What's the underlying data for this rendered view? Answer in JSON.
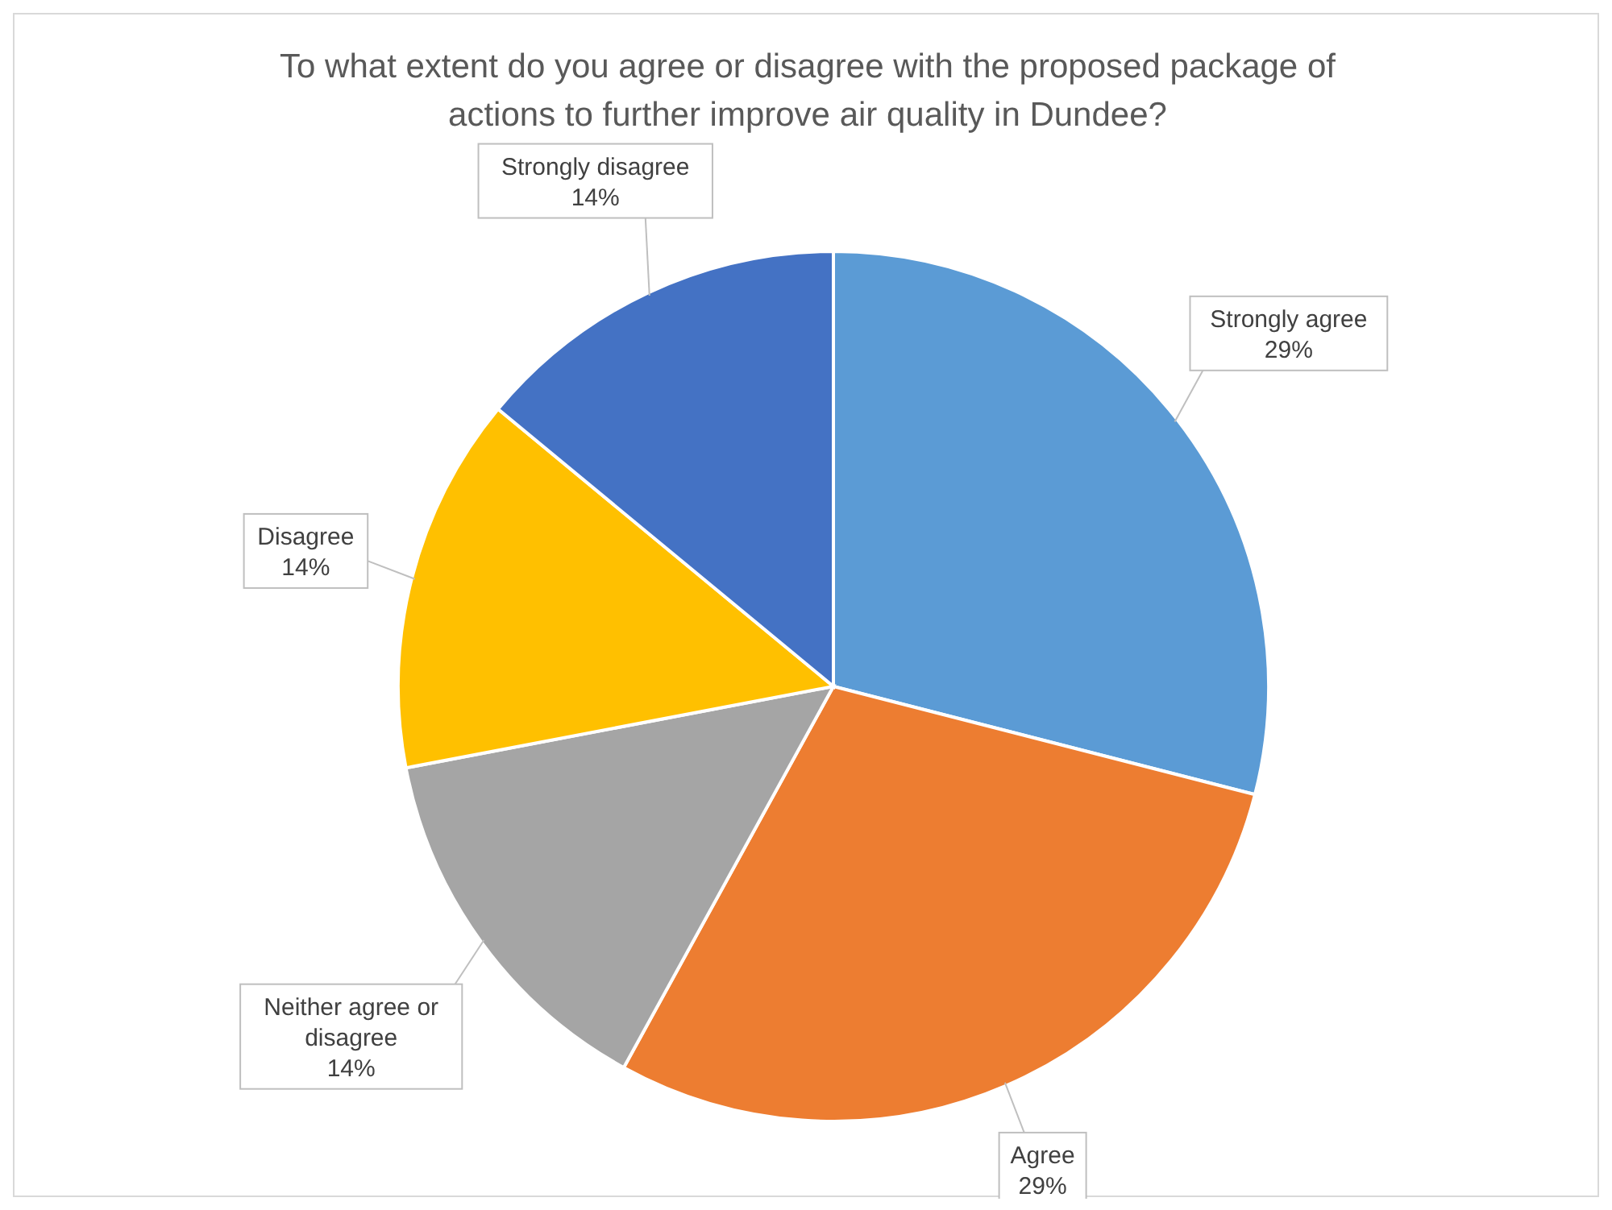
{
  "chart_data": {
    "type": "pie",
    "title": "To what extent do you agree or disagree with the proposed package of actions to further improve air quality in Dundee?",
    "categories": [
      "Strongly agree",
      "Agree",
      "Neither agree or disagree",
      "Disagree",
      "Strongly disagree"
    ],
    "values": [
      29,
      29,
      14,
      14,
      14
    ],
    "value_labels": [
      "29%",
      "29%",
      "14%",
      "14%",
      "14%"
    ],
    "colors": [
      "#5b9bd5",
      "#ed7d31",
      "#a5a5a5",
      "#ffc000",
      "#4472c4"
    ],
    "legend": false
  }
}
